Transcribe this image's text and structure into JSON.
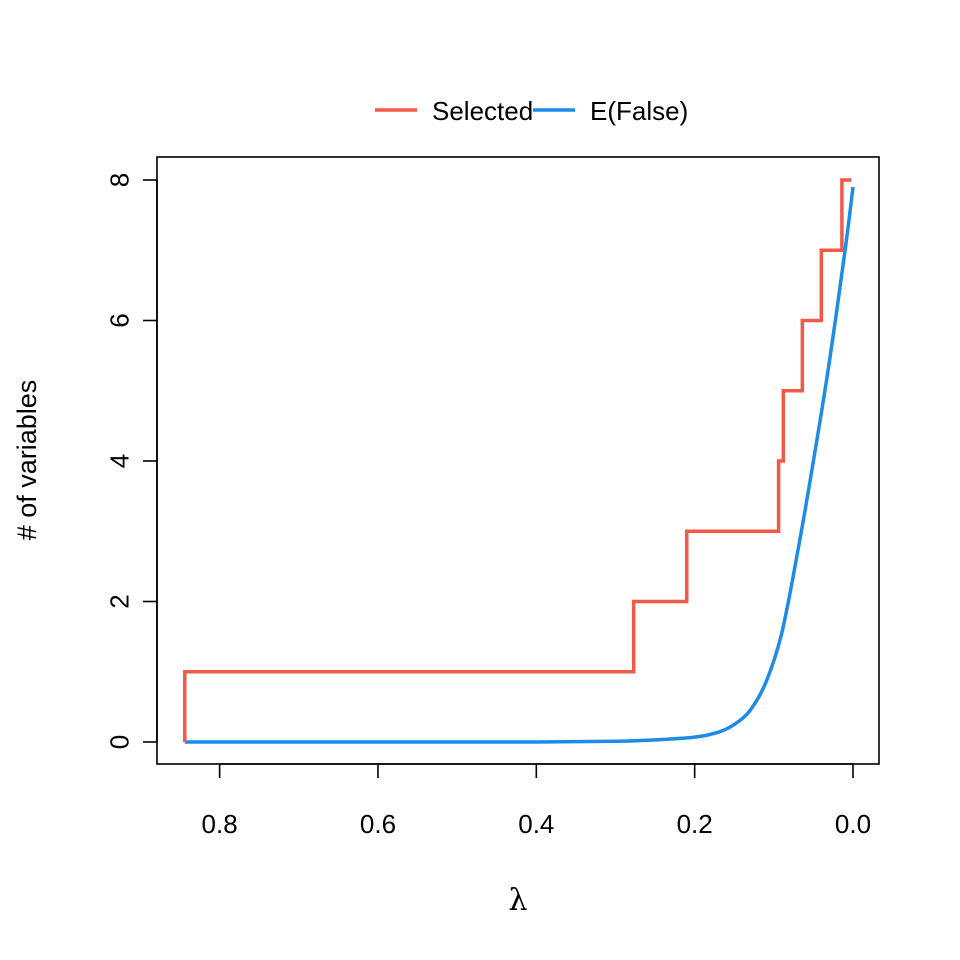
{
  "chart_data": {
    "type": "line",
    "title": "",
    "xlabel": "λ",
    "ylabel": "# of variables",
    "x_reversed": true,
    "xlim": [
      0.845,
      0.0
    ],
    "ylim": [
      0,
      8
    ],
    "x_ticks": [
      0.8,
      0.6,
      0.4,
      0.2,
      0.0
    ],
    "x_tick_labels": [
      "0.8",
      "0.6",
      "0.4",
      "0.2",
      "0.0"
    ],
    "y_ticks": [
      0,
      2,
      4,
      6,
      8
    ],
    "y_tick_labels": [
      "0",
      "2",
      "4",
      "6",
      "8"
    ],
    "grid": false,
    "legend_position": "top",
    "series": [
      {
        "name": "Selected",
        "color": "#f05a46",
        "step": true,
        "x": [
          0.844,
          0.844,
          0.277,
          0.277,
          0.21,
          0.21,
          0.094,
          0.094,
          0.088,
          0.088,
          0.064,
          0.064,
          0.04,
          0.04,
          0.014,
          0.014,
          0.002
        ],
        "y": [
          0,
          1,
          1,
          2,
          2,
          3,
          3,
          4,
          4,
          5,
          5,
          6,
          6,
          7,
          7,
          8,
          8
        ]
      },
      {
        "name": "E(False)",
        "color": "#1e8ce6",
        "step": false,
        "x": [
          0.844,
          0.6,
          0.4,
          0.3,
          0.25,
          0.2,
          0.17,
          0.15,
          0.13,
          0.11,
          0.09,
          0.07,
          0.05,
          0.03,
          0.01,
          0.0
        ],
        "y": [
          0,
          0,
          0,
          0.01,
          0.03,
          0.07,
          0.14,
          0.25,
          0.45,
          0.85,
          1.55,
          2.7,
          4.0,
          5.4,
          7.0,
          7.9
        ]
      }
    ]
  }
}
